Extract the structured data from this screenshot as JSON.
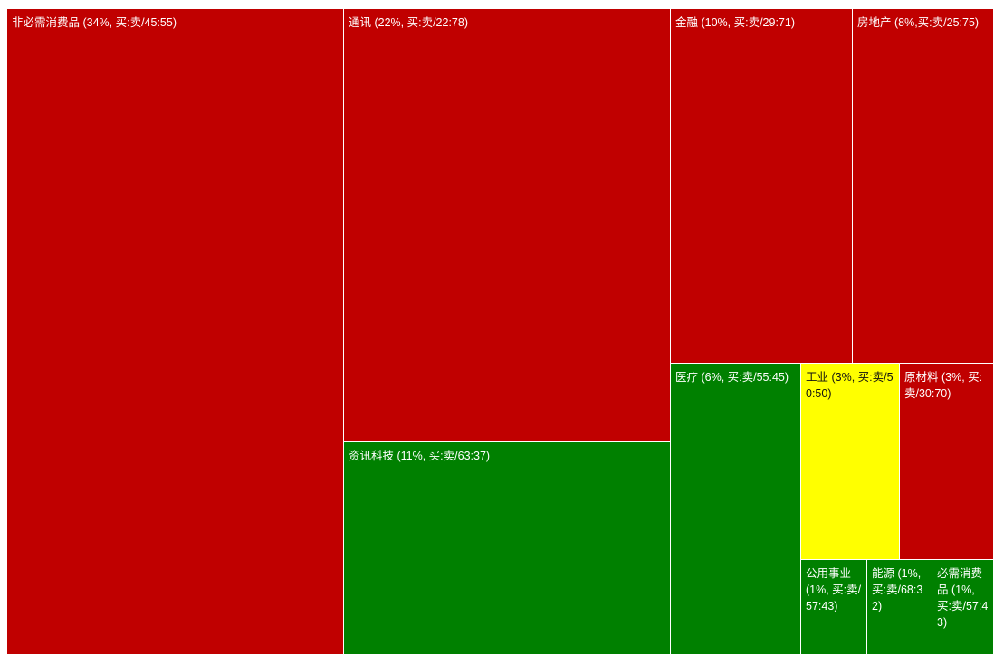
{
  "colors": {
    "down": "#c00000",
    "up": "#008000",
    "flat": "#ffff00"
  },
  "chart_data": {
    "type": "treemap",
    "title": "",
    "items": [
      {
        "sector": "非必需消费品",
        "weight_pct": 34,
        "buy_sell": "45:55",
        "color": "down",
        "label": "非必需消费品 (34%, 买:卖/45:55)"
      },
      {
        "sector": "通讯",
        "weight_pct": 22,
        "buy_sell": "22:78",
        "color": "down",
        "label": "通讯 (22%, 买:卖/22:78)"
      },
      {
        "sector": "资讯科技",
        "weight_pct": 11,
        "buy_sell": "63:37",
        "color": "up",
        "label": "资讯科技 (11%, 买:卖/63:37)"
      },
      {
        "sector": "金融",
        "weight_pct": 10,
        "buy_sell": "29:71",
        "color": "down",
        "label": "金融 (10%, 买:卖/29:71)"
      },
      {
        "sector": "房地产",
        "weight_pct": 8,
        "buy_sell": "25:75",
        "color": "down",
        "label": "房地产 (8%,买:卖/25:75)"
      },
      {
        "sector": "医疗",
        "weight_pct": 6,
        "buy_sell": "55:45",
        "color": "up",
        "label": "医疗 (6%, 买:卖/55:45)"
      },
      {
        "sector": "工业",
        "weight_pct": 3,
        "buy_sell": "50:50",
        "color": "flat",
        "label": "工业 (3%, 买:卖/50:50)"
      },
      {
        "sector": "原材料",
        "weight_pct": 3,
        "buy_sell": "30:70",
        "color": "down",
        "label": "原材料 (3%, 买:卖/30:70)"
      },
      {
        "sector": "公用事业",
        "weight_pct": 1,
        "buy_sell": "57:43",
        "color": "up",
        "label": "公用事业 (1%, 买:卖/57:43)"
      },
      {
        "sector": "能源",
        "weight_pct": 1,
        "buy_sell": "68:32",
        "color": "up",
        "label": "能源 (1%, 买:卖/68:32)"
      },
      {
        "sector": "必需消费品",
        "weight_pct": 1,
        "buy_sell": "57:43",
        "color": "up",
        "label": "必需消费品 (1%, 买:卖/57:43)"
      }
    ]
  }
}
